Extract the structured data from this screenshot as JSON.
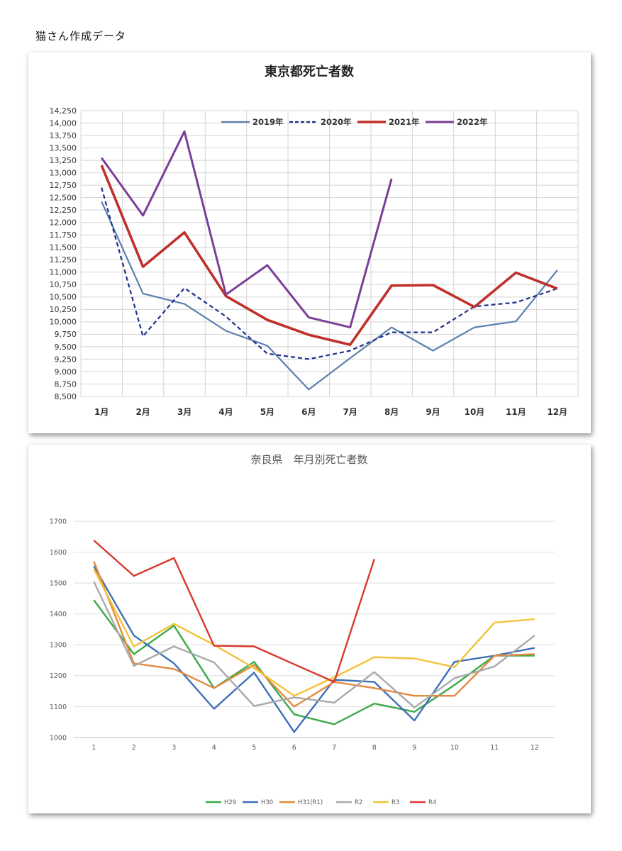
{
  "caption": "猫さん作成データ",
  "chart_data": [
    {
      "type": "line",
      "title": "東京都死亡者数",
      "categories": [
        "1月",
        "2月",
        "3月",
        "4月",
        "5月",
        "6月",
        "7月",
        "8月",
        "9月",
        "10月",
        "11月",
        "12月"
      ],
      "ylim": [
        8500,
        14250
      ],
      "yticks": [
        8500,
        8750,
        9000,
        9250,
        9500,
        9750,
        10000,
        10250,
        10500,
        10750,
        11000,
        11250,
        11500,
        11750,
        12000,
        12250,
        12500,
        12750,
        13000,
        13250,
        13500,
        13750,
        14000,
        14250
      ],
      "ytick_labels": [
        "8,500",
        "8,750",
        "9,000",
        "9,250",
        "9,500",
        "9,750",
        "10,000",
        "10,250",
        "10,500",
        "10,750",
        "11,000",
        "11,250",
        "11,500",
        "11,750",
        "12,000",
        "12,250",
        "12,500",
        "12,750",
        "13,000",
        "13,250",
        "13,500",
        "13,750",
        "14,000",
        "14,250"
      ],
      "grid": true,
      "legend": "top",
      "series": [
        {
          "name": "2019年",
          "color": "#5b80ad",
          "dash": false,
          "width": 2.2,
          "values": [
            12420,
            10570,
            10360,
            9820,
            9520,
            8640,
            9270,
            9890,
            9420,
            9890,
            10010,
            11040
          ]
        },
        {
          "name": "2020年",
          "color": "#1f2f8c",
          "dash": true,
          "width": 2.2,
          "values": [
            12700,
            9710,
            10680,
            10110,
            9360,
            9250,
            9420,
            9790,
            9790,
            10310,
            10390,
            10670
          ]
        },
        {
          "name": "2021年",
          "color": "#c0302a",
          "dash": false,
          "width": 3.6,
          "values": [
            13150,
            11110,
            11800,
            10520,
            10040,
            9740,
            9540,
            10730,
            10740,
            10300,
            10990,
            10670
          ]
        },
        {
          "name": "2022年",
          "color": "#7b3f98",
          "dash": false,
          "width": 3.0,
          "values": [
            13300,
            12140,
            13830,
            10550,
            11140,
            10090,
            9890,
            12880,
            null,
            null,
            null,
            null
          ]
        }
      ]
    },
    {
      "type": "line",
      "title": "奈良県　年月別死亡者数",
      "categories": [
        "1",
        "2",
        "3",
        "4",
        "5",
        "6",
        "7",
        "8",
        "9",
        "10",
        "11",
        "12"
      ],
      "ylim": [
        1000,
        1700
      ],
      "yticks": [
        1000,
        1100,
        1200,
        1300,
        1400,
        1500,
        1600,
        1700
      ],
      "ytick_labels": [
        "1000",
        "1100",
        "1200",
        "1300",
        "1400",
        "1500",
        "1600",
        "1700"
      ],
      "grid": true,
      "legend": "bottom",
      "series": [
        {
          "name": "H29",
          "color": "#3daa4a",
          "values": [
            1445,
            1270,
            1362,
            1160,
            1245,
            1075,
            1043,
            1110,
            1083,
            1170,
            1265,
            1265
          ]
        },
        {
          "name": "H30",
          "color": "#3f6fb8",
          "values": [
            1555,
            1330,
            1240,
            1093,
            1210,
            1018,
            1187,
            1180,
            1055,
            1245,
            1265,
            1290
          ]
        },
        {
          "name": "H31(R1)",
          "color": "#e38a3f",
          "values": [
            1570,
            1240,
            1222,
            1160,
            1235,
            1100,
            1180,
            1160,
            1135,
            1135,
            1265,
            1270
          ]
        },
        {
          "name": "R2",
          "color": "#a9a9a9",
          "values": [
            1505,
            1232,
            1295,
            1243,
            1102,
            1130,
            1113,
            1212,
            1097,
            1192,
            1230,
            1330
          ]
        },
        {
          "name": "R3",
          "color": "#f3c238",
          "values": [
            1545,
            1295,
            1368,
            1300,
            1225,
            1135,
            1195,
            1260,
            1256,
            1228,
            1372,
            1383
          ]
        },
        {
          "name": "R4",
          "color": "#d9392f",
          "values": [
            1638,
            1523,
            1581,
            1297,
            1295,
            1237,
            1180,
            1578,
            null,
            null,
            null,
            null
          ]
        }
      ]
    }
  ]
}
